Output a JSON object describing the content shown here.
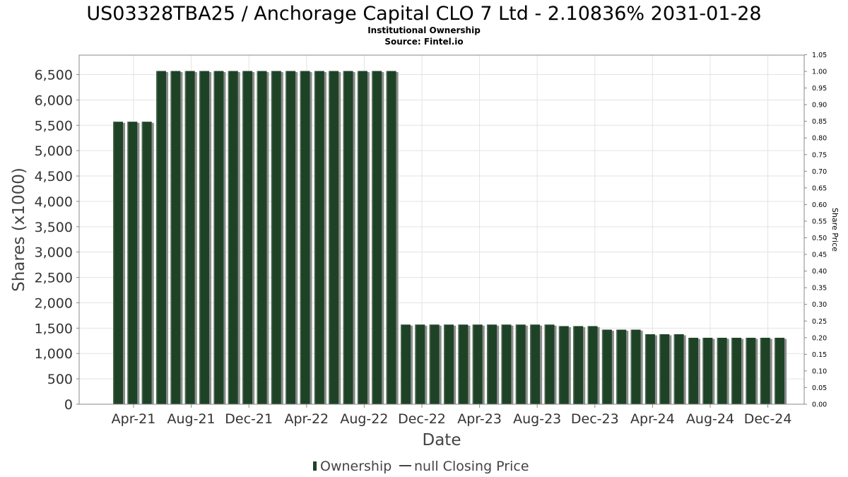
{
  "chart_data": {
    "type": "bar",
    "title": "US03328TBA25 / Anchorage Capital CLO 7 Ltd - 2.10836% 2031-01-28",
    "subtitle": "Institutional Ownership",
    "source": "Source: Fintel.io",
    "xlabel": "Date",
    "ylabel": "Shares (x1000)",
    "ylabel_right": "Share Price",
    "ylim": [
      0,
      6900
    ],
    "ylim_right": [
      0,
      1.05
    ],
    "yticks": [
      "0",
      "500",
      "1,000",
      "1,500",
      "2,000",
      "2,500",
      "3,000",
      "3,500",
      "4,000",
      "4,500",
      "5,000",
      "5,500",
      "6,000",
      "6,500"
    ],
    "yticks_right": [
      "0.00",
      "0.05",
      "0.10",
      "0.15",
      "0.20",
      "0.25",
      "0.30",
      "0.35",
      "0.40",
      "0.45",
      "0.50",
      "0.55",
      "0.60",
      "0.65",
      "0.70",
      "0.75",
      "0.80",
      "0.85",
      "0.90",
      "0.95",
      "1.00",
      "1.05"
    ],
    "xticks": [
      "Apr-21",
      "Aug-21",
      "Dec-21",
      "Apr-22",
      "Aug-22",
      "Dec-22",
      "Apr-23",
      "Aug-23",
      "Dec-23",
      "Apr-24",
      "Aug-24",
      "Dec-24"
    ],
    "grid": true,
    "legend_position": "bottom-center",
    "bar_color": "#1e4226",
    "series": [
      {
        "name": "Ownership",
        "values": [
          5570,
          5570,
          5570,
          6570,
          6570,
          6570,
          6570,
          6570,
          6570,
          6570,
          6570,
          6570,
          6570,
          6570,
          6570,
          6570,
          6570,
          6570,
          6570,
          6570,
          1570,
          1570,
          1570,
          1570,
          1570,
          1570,
          1570,
          1570,
          1570,
          1570,
          1570,
          1540,
          1540,
          1540,
          1470,
          1470,
          1470,
          1380,
          1380,
          1380,
          1310,
          1310,
          1310,
          1310,
          1310,
          1310,
          1310
        ]
      }
    ],
    "legend": {
      "ownership_label": "Ownership",
      "price_label": "null Closing Price"
    }
  }
}
